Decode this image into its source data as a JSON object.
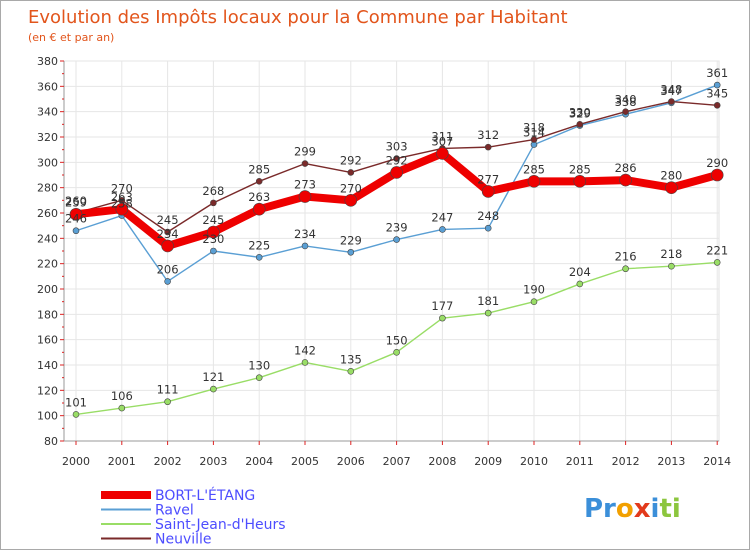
{
  "chart_data": {
    "type": "line",
    "title": "Evolution des Impôts locaux pour la Commune par Habitant",
    "subtitle": "(en € et par an)",
    "xlabel": "",
    "ylabel": "",
    "x": [
      2000,
      2001,
      2002,
      2003,
      2004,
      2005,
      2006,
      2007,
      2008,
      2009,
      2010,
      2011,
      2012,
      2013,
      2014
    ],
    "ylim": [
      80,
      380
    ],
    "yticks": [
      80,
      100,
      120,
      140,
      160,
      180,
      200,
      220,
      240,
      260,
      280,
      300,
      320,
      340,
      360,
      380
    ],
    "grid": true,
    "legend_position": "bottom-left",
    "series": [
      {
        "name": "BORT-L'ÉTANG",
        "color": "#ee0000",
        "values": [
          259,
          263,
          234,
          245,
          263,
          273,
          270,
          292,
          307,
          277,
          285,
          285,
          286,
          280,
          290
        ]
      },
      {
        "name": "Ravel",
        "color": "#5a9fd4",
        "values": [
          246,
          258,
          206,
          230,
          225,
          234,
          229,
          239,
          247,
          248,
          314,
          329,
          338,
          347,
          361
        ]
      },
      {
        "name": "Saint-Jean-d'Heurs",
        "color": "#99dd66",
        "values": [
          101,
          106,
          111,
          121,
          130,
          142,
          135,
          150,
          177,
          181,
          190,
          204,
          216,
          218,
          221
        ]
      },
      {
        "name": "Neuville",
        "color": "#7a2a2a",
        "values": [
          260,
          270,
          245,
          268,
          285,
          299,
          292,
          303,
          311,
          312,
          318,
          330,
          340,
          348,
          345
        ]
      }
    ]
  },
  "logo": {
    "parts": [
      "Pr",
      "o",
      "x",
      "i",
      "ti"
    ]
  }
}
